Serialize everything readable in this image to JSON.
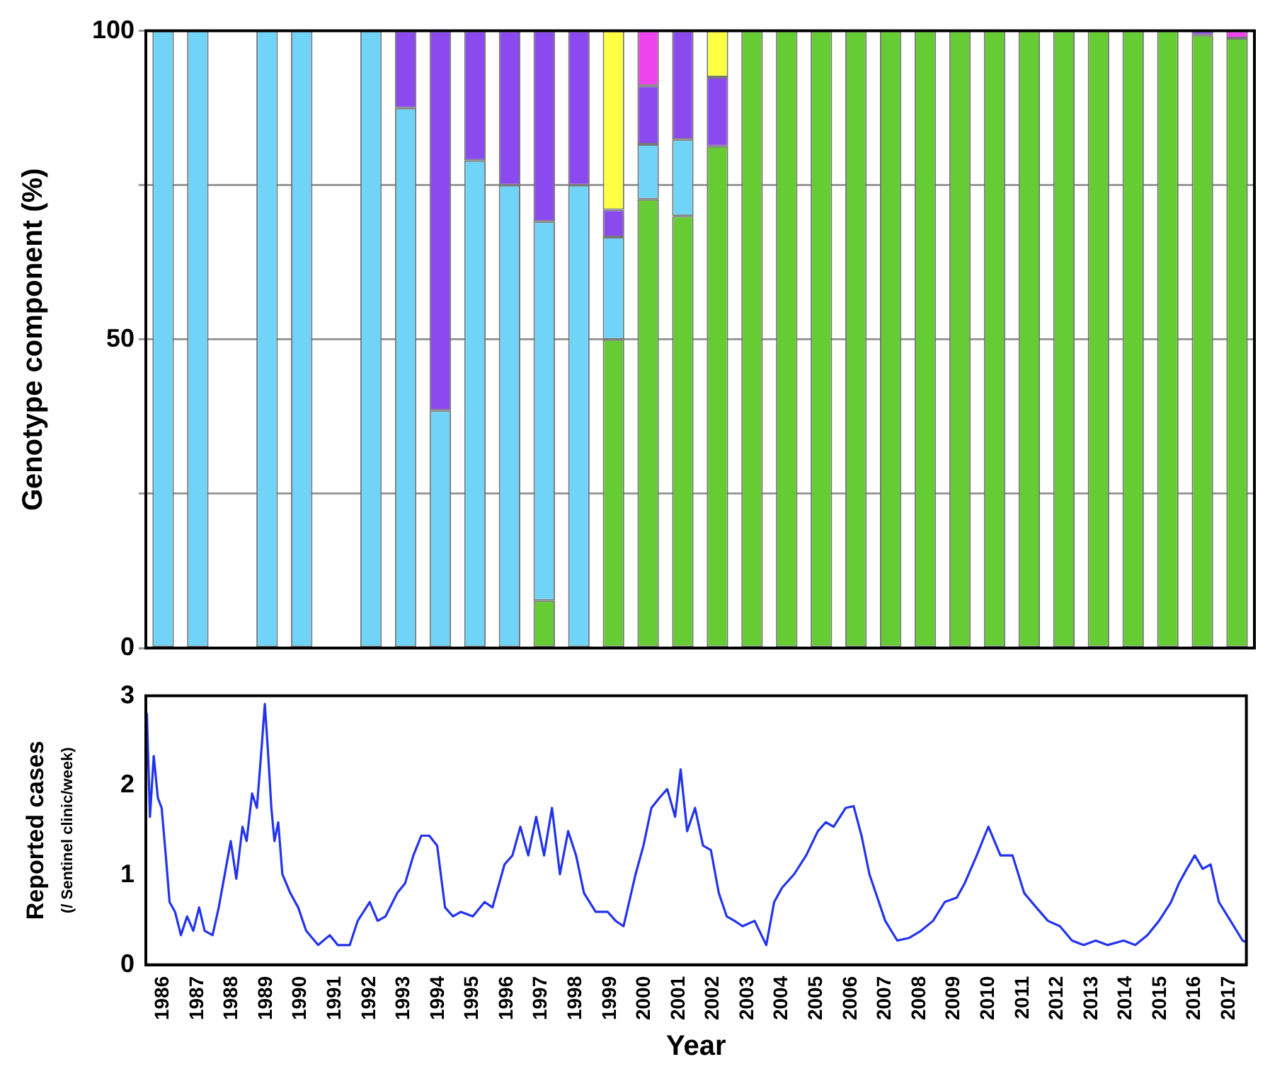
{
  "chart_data": [
    {
      "type": "bar",
      "stacked": true,
      "ylabel": "Genotype component (%)",
      "categories": [
        "1986",
        "1987",
        "1988",
        "1989",
        "1990",
        "1991",
        "1992",
        "1993",
        "1994",
        "1995",
        "1996",
        "1997",
        "1998",
        "1999",
        "2000",
        "2001",
        "2002",
        "2003",
        "2004",
        "2005",
        "2006",
        "2007",
        "2008",
        "2009",
        "2010",
        "2011",
        "2012",
        "2013",
        "2014",
        "2015",
        "2016",
        "2017"
      ],
      "series": [
        {
          "color": "#66cc33",
          "values": [
            null,
            null,
            null,
            null,
            null,
            null,
            null,
            null,
            null,
            null,
            null,
            7.7,
            null,
            50,
            72.7,
            70,
            81.3,
            100,
            100,
            100,
            100,
            100,
            100,
            100,
            100,
            100,
            100,
            100,
            100,
            100,
            99.3,
            98.8
          ]
        },
        {
          "color": "#70d4f8",
          "values": [
            100,
            100,
            null,
            100,
            100,
            null,
            100,
            87.5,
            38.5,
            79,
            75,
            61.4,
            75,
            16.6,
            8.9,
            12.4,
            null,
            null,
            null,
            null,
            null,
            null,
            null,
            null,
            null,
            null,
            null,
            null,
            null,
            null,
            null,
            null
          ]
        },
        {
          "color": "#8a4af0",
          "values": [
            null,
            null,
            null,
            null,
            null,
            null,
            null,
            12.5,
            61.5,
            21,
            25,
            30.9,
            25,
            4.4,
            9.5,
            17.6,
            11.2,
            null,
            null,
            null,
            null,
            null,
            null,
            null,
            null,
            null,
            null,
            null,
            null,
            null,
            0.7,
            null
          ]
        },
        {
          "color": "#ffff44",
          "values": [
            null,
            null,
            null,
            null,
            null,
            null,
            null,
            null,
            null,
            null,
            null,
            null,
            null,
            29,
            null,
            null,
            7.5,
            null,
            null,
            null,
            null,
            null,
            null,
            null,
            null,
            null,
            null,
            null,
            null,
            null,
            null,
            null
          ]
        },
        {
          "color": "#ee44ee",
          "values": [
            null,
            null,
            null,
            null,
            null,
            null,
            null,
            null,
            null,
            null,
            null,
            null,
            null,
            null,
            8.9,
            null,
            null,
            null,
            null,
            null,
            null,
            null,
            null,
            null,
            null,
            null,
            null,
            null,
            null,
            null,
            null,
            1.2
          ]
        }
      ],
      "ylim": [
        0,
        100
      ],
      "yticks": [
        0,
        {
          "value": 25,
          "label": null
        },
        50,
        {
          "value": 75,
          "label": null
        },
        100
      ],
      "grid": "y",
      "tick_labels": "y",
      "legend": false
    },
    {
      "type": "line",
      "xlabel": "Year",
      "ylabel": "Reported cases\n(/ Sentinel clinic/week)",
      "xlim": [
        1986,
        2018
      ],
      "xticks": [
        {
          "value": 1986.5,
          "label": "1986"
        },
        {
          "value": 1987.5,
          "label": "1987"
        },
        {
          "value": 1988.5,
          "label": "1988"
        },
        {
          "value": 1989.5,
          "label": "1989"
        },
        {
          "value": 1990.5,
          "label": "1990"
        },
        {
          "value": 1991.5,
          "label": "1991"
        },
        {
          "value": 1992.5,
          "label": "1992"
        },
        {
          "value": 1993.5,
          "label": "1993"
        },
        {
          "value": 1994.5,
          "label": "1994"
        },
        {
          "value": 1995.5,
          "label": "1995"
        },
        {
          "value": 1996.5,
          "label": "1996"
        },
        {
          "value": 1997.5,
          "label": "1997"
        },
        {
          "value": 1998.5,
          "label": "1998"
        },
        {
          "value": 1999.5,
          "label": "1999"
        },
        {
          "value": 2000.5,
          "label": "2000"
        },
        {
          "value": 2001.5,
          "label": "2001"
        },
        {
          "value": 2002.5,
          "label": "2002"
        },
        {
          "value": 2003.5,
          "label": "2003"
        },
        {
          "value": 2004.5,
          "label": "2004"
        },
        {
          "value": 2005.5,
          "label": "2005"
        },
        {
          "value": 2006.5,
          "label": "2006"
        },
        {
          "value": 2007.5,
          "label": "2007"
        },
        {
          "value": 2008.5,
          "label": "2008"
        },
        {
          "value": 2009.5,
          "label": "2009"
        },
        {
          "value": 2010.5,
          "label": "2010"
        },
        {
          "value": 2011.5,
          "label": "2011"
        },
        {
          "value": 2012.5,
          "label": "2012"
        },
        {
          "value": 2013.5,
          "label": "2013"
        },
        {
          "value": 2014.5,
          "label": "2014"
        },
        {
          "value": 2015.5,
          "label": "2015"
        },
        {
          "value": 2016.5,
          "label": "2016"
        },
        {
          "value": 2017.5,
          "label": "2017"
        }
      ],
      "ylim": [
        0,
        3
      ],
      "yticks": [
        0,
        1,
        2,
        3
      ],
      "grid": false,
      "legend": false,
      "marker": "none",
      "series": [
        {
          "color": "#2233ee",
          "x": [
            1986.03,
            1986.12,
            1986.23,
            1986.35,
            1986.46,
            1986.58,
            1986.69,
            1986.85,
            1987.02,
            1987.2,
            1987.38,
            1987.55,
            1987.71,
            1987.94,
            1988.12,
            1988.47,
            1988.63,
            1988.81,
            1988.93,
            1989.09,
            1989.23,
            1989.37,
            1989.46,
            1989.55,
            1989.65,
            1989.74,
            1989.85,
            1989.97,
            1990.2,
            1990.43,
            1990.66,
            1991.01,
            1991.35,
            1991.58,
            1991.93,
            1992.16,
            1992.51,
            1992.74,
            1992.97,
            1993.31,
            1993.54,
            1993.78,
            1994.01,
            1994.24,
            1994.47,
            1994.7,
            1994.93,
            1995.16,
            1995.51,
            1995.85,
            1996.08,
            1996.43,
            1996.66,
            1996.89,
            1997.12,
            1997.35,
            1997.58,
            1997.81,
            1998.04,
            1998.28,
            1998.51,
            1998.74,
            1999.08,
            1999.43,
            1999.66,
            1999.89,
            2000.24,
            2000.47,
            2000.7,
            2000.93,
            2001.16,
            2001.39,
            2001.55,
            2001.74,
            2001.97,
            2002.2,
            2002.43,
            2002.66,
            2002.89,
            2003.12,
            2003.35,
            2003.7,
            2004.04,
            2004.27,
            2004.5,
            2004.85,
            2005.2,
            2005.54,
            2005.77,
            2006,
            2006.35,
            2006.58,
            2006.81,
            2007.04,
            2007.27,
            2007.5,
            2007.85,
            2008.2,
            2008.54,
            2008.89,
            2009.23,
            2009.58,
            2009.81,
            2010.16,
            2010.39,
            2010.5,
            2010.85,
            2011.2,
            2011.54,
            2011.89,
            2012.23,
            2012.58,
            2012.93,
            2013.27,
            2013.62,
            2013.96,
            2014.43,
            2014.77,
            2015.12,
            2015.46,
            2015.81,
            2016.04,
            2016.27,
            2016.5,
            2016.73,
            2016.96,
            2017.2,
            2017.54,
            2017.89,
            2018
          ],
          "values": [
            2.81,
            1.65,
            2.33,
            1.86,
            1.75,
            1.22,
            0.7,
            0.59,
            0.33,
            0.54,
            0.38,
            0.64,
            0.38,
            0.33,
            0.64,
            1.38,
            0.96,
            1.54,
            1.38,
            1.91,
            1.75,
            2.44,
            2.91,
            2.39,
            1.75,
            1.38,
            1.59,
            1.01,
            0.8,
            0.64,
            0.38,
            0.22,
            0.33,
            0.22,
            0.22,
            0.49,
            0.7,
            0.49,
            0.54,
            0.8,
            0.91,
            1.22,
            1.44,
            1.44,
            1.33,
            0.64,
            0.54,
            0.59,
            0.54,
            0.7,
            0.64,
            1.12,
            1.22,
            1.54,
            1.22,
            1.65,
            1.22,
            1.75,
            1.01,
            1.49,
            1.22,
            0.8,
            0.59,
            0.59,
            0.49,
            0.43,
            1.01,
            1.33,
            1.75,
            1.86,
            1.96,
            1.65,
            2.18,
            1.49,
            1.75,
            1.33,
            1.28,
            0.8,
            0.54,
            0.49,
            0.43,
            0.49,
            0.22,
            0.7,
            0.86,
            1.01,
            1.22,
            1.49,
            1.59,
            1.54,
            1.75,
            1.77,
            1.44,
            1.01,
            0.75,
            0.49,
            0.27,
            0.3,
            0.38,
            0.49,
            0.7,
            0.75,
            0.91,
            1.22,
            1.44,
            1.54,
            1.22,
            1.22,
            0.8,
            0.64,
            0.49,
            0.43,
            0.27,
            0.22,
            0.27,
            0.22,
            0.27,
            0.22,
            0.33,
            0.49,
            0.7,
            0.91,
            1.07,
            1.22,
            1.07,
            1.12,
            0.7,
            0.49,
            0.27,
            0.25
          ]
        }
      ]
    }
  ]
}
